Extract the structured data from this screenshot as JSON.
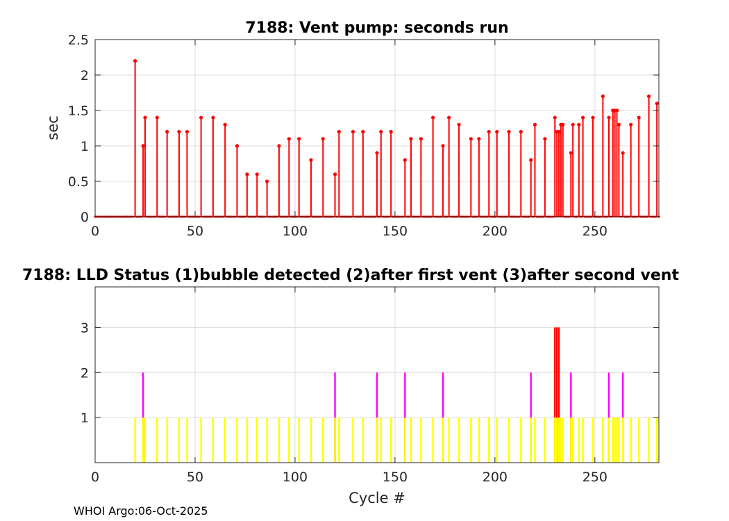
{
  "chart_data": [
    {
      "type": "stem",
      "title": "7188: Vent pump: seconds run",
      "xlabel": "",
      "ylabel": "sec",
      "xlim": [
        0,
        282
      ],
      "ylim": [
        0,
        2.5
      ],
      "xticks": [
        0,
        50,
        100,
        150,
        200,
        250
      ],
      "yticks": [
        0,
        0.5,
        1,
        1.5,
        2,
        2.5
      ],
      "ytick_labels": [
        "0",
        "0.5",
        "1",
        "1.5",
        "2",
        "2.5"
      ],
      "grid": true,
      "series_color": "#ff0000",
      "points": [
        [
          20,
          2.2
        ],
        [
          24,
          1.0
        ],
        [
          25,
          1.4
        ],
        [
          31,
          1.4
        ],
        [
          36,
          1.2
        ],
        [
          42,
          1.2
        ],
        [
          46,
          1.2
        ],
        [
          53,
          1.4
        ],
        [
          59,
          1.4
        ],
        [
          65,
          1.3
        ],
        [
          71,
          1.0
        ],
        [
          76,
          0.6
        ],
        [
          81,
          0.6
        ],
        [
          86,
          0.5
        ],
        [
          92,
          1.0
        ],
        [
          97,
          1.1
        ],
        [
          102,
          1.1
        ],
        [
          108,
          0.8
        ],
        [
          114,
          1.1
        ],
        [
          120,
          0.6
        ],
        [
          122,
          1.2
        ],
        [
          129,
          1.2
        ],
        [
          134,
          1.2
        ],
        [
          141,
          0.9
        ],
        [
          143,
          1.2
        ],
        [
          148,
          1.2
        ],
        [
          155,
          0.8
        ],
        [
          158,
          1.1
        ],
        [
          163,
          1.1
        ],
        [
          169,
          1.4
        ],
        [
          174,
          1.0
        ],
        [
          177,
          1.4
        ],
        [
          182,
          1.3
        ],
        [
          188,
          1.1
        ],
        [
          192,
          1.1
        ],
        [
          197,
          1.2
        ],
        [
          201,
          1.2
        ],
        [
          207,
          1.2
        ],
        [
          213,
          1.2
        ],
        [
          218,
          0.8
        ],
        [
          220,
          1.3
        ],
        [
          225,
          1.1
        ],
        [
          230,
          1.4
        ],
        [
          231,
          1.2
        ],
        [
          232,
          1.2
        ],
        [
          233,
          1.3
        ],
        [
          234,
          1.3
        ],
        [
          238,
          0.9
        ],
        [
          239,
          1.3
        ],
        [
          242,
          1.3
        ],
        [
          244,
          1.4
        ],
        [
          249,
          1.4
        ],
        [
          254,
          1.7
        ],
        [
          257,
          1.4
        ],
        [
          259,
          1.5
        ],
        [
          260,
          1.5
        ],
        [
          261,
          1.5
        ],
        [
          262,
          1.3
        ],
        [
          264,
          0.9
        ],
        [
          268,
          1.3
        ],
        [
          272,
          1.4
        ],
        [
          277,
          1.7
        ],
        [
          281,
          1.6
        ]
      ]
    },
    {
      "type": "bar",
      "title": "7188: LLD Status   (1)bubble detected   (2)after first vent  (3)after second vent",
      "xlabel": "Cycle #",
      "ylabel": "",
      "xlim": [
        0,
        282
      ],
      "ylim": [
        0,
        3.9
      ],
      "xticks": [
        0,
        50,
        100,
        150,
        200,
        250
      ],
      "yticks": [
        1,
        2,
        3
      ],
      "grid": true,
      "series": [
        {
          "name": "bubble detected",
          "value": 1,
          "color": "#ffff00",
          "cycles": [
            20,
            24,
            25,
            31,
            36,
            42,
            46,
            53,
            59,
            65,
            71,
            76,
            81,
            86,
            92,
            97,
            102,
            108,
            114,
            120,
            122,
            129,
            134,
            141,
            143,
            148,
            155,
            158,
            163,
            169,
            174,
            177,
            182,
            188,
            192,
            197,
            201,
            207,
            213,
            218,
            220,
            225,
            230,
            231,
            232,
            233,
            234,
            238,
            239,
            242,
            244,
            249,
            254,
            257,
            259,
            260,
            261,
            262,
            264,
            268,
            272,
            277,
            281
          ]
        },
        {
          "name": "after first vent",
          "value": 2,
          "color": "#ff00ff",
          "cycles": [
            24,
            120,
            141,
            155,
            174,
            218,
            238,
            257,
            264
          ]
        },
        {
          "name": "after second vent",
          "value": 3,
          "color": "#ff0000",
          "cycles": [
            230,
            231,
            232
          ]
        }
      ]
    }
  ],
  "footer": "WHOI Argo:06-Oct-2025"
}
